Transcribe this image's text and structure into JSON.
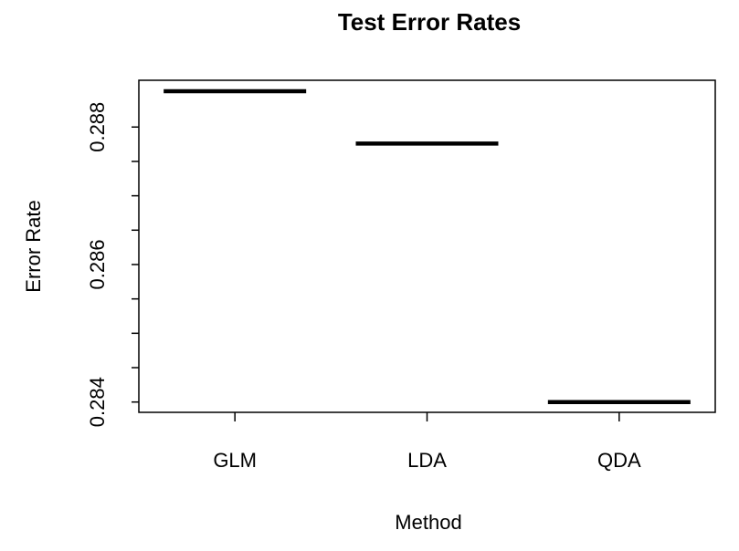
{
  "chart_data": {
    "type": "boxplot",
    "title": "Test Error Rates",
    "xlabel": "Method",
    "ylabel": "Error Rate",
    "categories": [
      "GLM",
      "LDA",
      "QDA"
    ],
    "values": [
      0.28852,
      0.28776,
      0.284
    ],
    "ylim": [
      0.28385,
      0.28868
    ],
    "yticks": [
      0.284,
      0.2845,
      0.285,
      0.2855,
      0.286,
      0.2865,
      0.287,
      0.2875,
      0.288
    ],
    "ytick_labels": [
      "0.284",
      "",
      "",
      "",
      "0.286",
      "",
      "",
      "",
      "0.288"
    ],
    "grid": false,
    "legend": "none",
    "colors": {
      "line": "#000000",
      "background": "#ffffff"
    }
  }
}
